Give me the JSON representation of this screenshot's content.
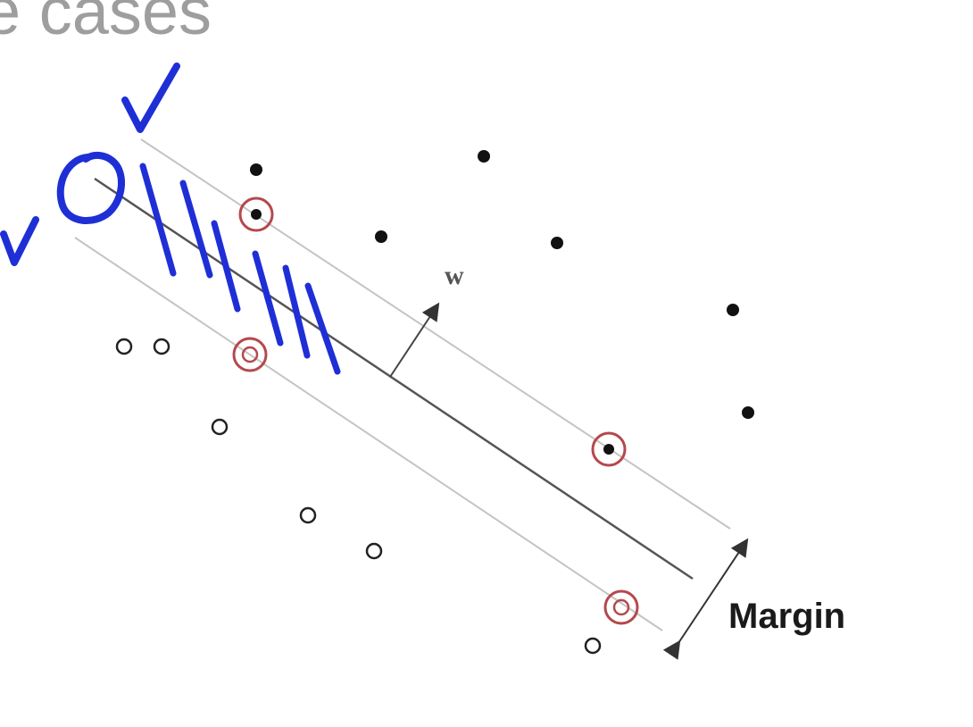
{
  "slide": {
    "title_fragment": "e cases"
  },
  "diagram": {
    "weight_label": "w",
    "margin_label": "Margin"
  },
  "colors": {
    "ink_blue": "#1f2fd6",
    "support_ring": "#b5484c",
    "hyperplane": "#555555",
    "margin_line": "#bdbdbd",
    "title_gray": "#9e9e9e"
  },
  "icons": [
    "checkmark-icon",
    "circle-annotation-icon",
    "hatch-marks"
  ]
}
